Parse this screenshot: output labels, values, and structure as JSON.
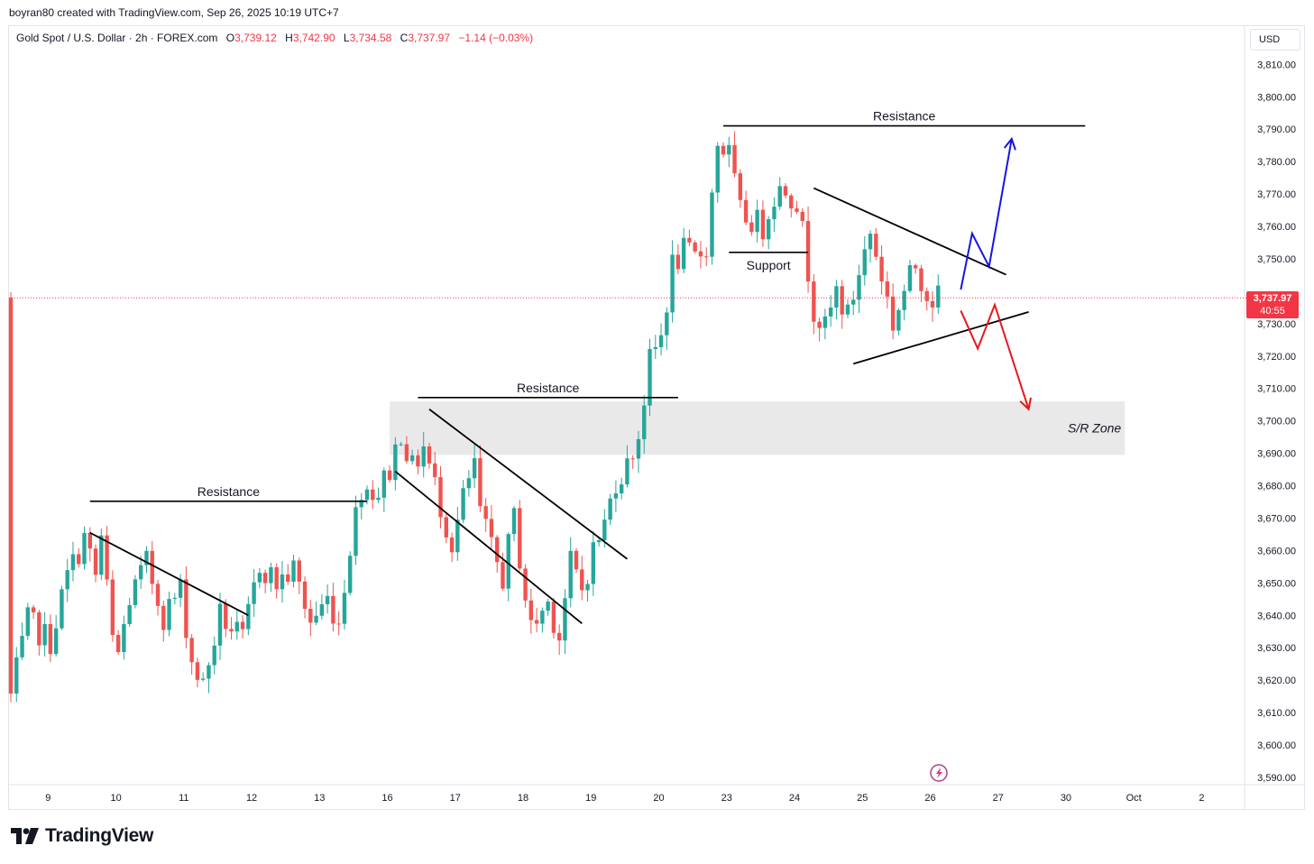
{
  "header": {
    "caption": "boyran80 created with TradingView.com, Sep 26, 2025 10:19 UTC+7"
  },
  "legend": {
    "symbol": "Gold Spot / U.S. Dollar · 2h · FOREX.com",
    "open_label": "O",
    "open": "3,739.12",
    "high_label": "H",
    "high": "3,742.90",
    "low_label": "L",
    "low": "3,734.58",
    "close_label": "C",
    "close": "3,737.97",
    "change": "−1.14 (−0.03%)"
  },
  "price_scale": {
    "currency": "USD",
    "last_price": "3,737.97",
    "countdown": "40:55"
  },
  "footer": {
    "brand": "TradingView"
  },
  "colors": {
    "up": "#26a69a",
    "down": "#ef5350",
    "zone": "#e9e9e9",
    "blue_path": "#1515e6",
    "red_path": "#e8171c",
    "last_price_line": "#f23645"
  },
  "chart_data": {
    "type": "candlestick",
    "title": "",
    "ylim": [
      3586,
      3816
    ],
    "y_ticks": [
      3590,
      3600,
      3610,
      3620,
      3630,
      3640,
      3650,
      3660,
      3670,
      3680,
      3690,
      3700,
      3710,
      3720,
      3730,
      3740,
      3750,
      3760,
      3770,
      3780,
      3790,
      3800,
      3810
    ],
    "y_tick_labels": [
      "3,590.00",
      "3,600.00",
      "3,610.00",
      "3,620.00",
      "3,630.00",
      "3,640.00",
      "3,650.00",
      "3,660.00",
      "3,670.00",
      "3,680.00",
      "3,690.00",
      "3,700.00",
      "3,710.00",
      "3,720.00",
      "3,730.00",
      "3,740.00",
      "3,750.00",
      "3,760.00",
      "3,770.00",
      "3,780.00",
      "3,790.00",
      "3,800.00",
      "3,810.00"
    ],
    "x_ticks": [
      {
        "label": "9",
        "t": 5
      },
      {
        "label": "10",
        "t": 17
      },
      {
        "label": "11",
        "t": 29
      },
      {
        "label": "12",
        "t": 41
      },
      {
        "label": "13",
        "t": 53
      },
      {
        "label": "16",
        "t": 65
      },
      {
        "label": "17",
        "t": 77
      },
      {
        "label": "18",
        "t": 89
      },
      {
        "label": "19",
        "t": 101
      },
      {
        "label": "20",
        "t": 113
      },
      {
        "label": "23",
        "t": 125
      },
      {
        "label": "24",
        "t": 137
      },
      {
        "label": "25",
        "t": 149
      },
      {
        "label": "26",
        "t": 161
      },
      {
        "label": "27",
        "t": 173
      },
      {
        "label": "30",
        "t": 185
      },
      {
        "label": "Oct",
        "t": 197
      },
      {
        "label": "2",
        "t": 209
      }
    ],
    "last_price": 3737.97,
    "anchors": [
      {
        "t": 1,
        "p": 3615
      },
      {
        "t": 4,
        "p": 3638
      },
      {
        "t": 8,
        "p": 3632
      },
      {
        "t": 11,
        "p": 3652
      },
      {
        "t": 14,
        "p": 3664
      },
      {
        "t": 16,
        "p": 3652
      },
      {
        "t": 17,
        "p": 3664
      },
      {
        "t": 19,
        "p": 3632
      },
      {
        "t": 20,
        "p": 3628
      },
      {
        "t": 22,
        "p": 3645
      },
      {
        "t": 25,
        "p": 3656
      },
      {
        "t": 28,
        "p": 3640
      },
      {
        "t": 31,
        "p": 3648
      },
      {
        "t": 33,
        "p": 3626
      },
      {
        "t": 35,
        "p": 3618
      },
      {
        "t": 38,
        "p": 3640
      },
      {
        "t": 42,
        "p": 3632
      },
      {
        "t": 45,
        "p": 3656
      },
      {
        "t": 48,
        "p": 3650
      },
      {
        "t": 51,
        "p": 3654
      },
      {
        "t": 54,
        "p": 3638
      },
      {
        "t": 57,
        "p": 3645
      },
      {
        "t": 59,
        "p": 3638
      },
      {
        "t": 61,
        "p": 3662
      },
      {
        "t": 63,
        "p": 3680
      },
      {
        "t": 66,
        "p": 3678
      },
      {
        "t": 68,
        "p": 3685
      },
      {
        "t": 70,
        "p": 3697
      },
      {
        "t": 72,
        "p": 3685
      },
      {
        "t": 74,
        "p": 3692
      },
      {
        "t": 76,
        "p": 3680
      },
      {
        "t": 79,
        "p": 3662
      },
      {
        "t": 81,
        "p": 3676
      },
      {
        "t": 83,
        "p": 3686
      },
      {
        "t": 84,
        "p": 3672
      },
      {
        "t": 86,
        "p": 3660
      },
      {
        "t": 88,
        "p": 3652
      },
      {
        "t": 90,
        "p": 3670
      },
      {
        "t": 92,
        "p": 3646
      },
      {
        "t": 93,
        "p": 3636
      },
      {
        "t": 96,
        "p": 3644
      },
      {
        "t": 98,
        "p": 3634
      },
      {
        "t": 100,
        "p": 3656
      },
      {
        "t": 102,
        "p": 3648
      },
      {
        "t": 104,
        "p": 3660
      },
      {
        "t": 106,
        "p": 3668
      },
      {
        "t": 108,
        "p": 3682
      },
      {
        "t": 110,
        "p": 3686
      },
      {
        "t": 112,
        "p": 3696
      },
      {
        "t": 114,
        "p": 3718
      },
      {
        "t": 116,
        "p": 3726
      },
      {
        "t": 118,
        "p": 3748
      },
      {
        "t": 120,
        "p": 3752
      },
      {
        "t": 122,
        "p": 3750
      },
      {
        "t": 124,
        "p": 3754
      },
      {
        "t": 126,
        "p": 3786
      },
      {
        "t": 128,
        "p": 3782
      },
      {
        "t": 130,
        "p": 3764
      },
      {
        "t": 132,
        "p": 3762
      },
      {
        "t": 134,
        "p": 3760
      },
      {
        "t": 136,
        "p": 3770
      },
      {
        "t": 138,
        "p": 3772
      },
      {
        "t": 140,
        "p": 3768
      },
      {
        "t": 141,
        "p": 3758
      },
      {
        "t": 143,
        "p": 3735
      },
      {
        "t": 145,
        "p": 3728
      },
      {
        "t": 147,
        "p": 3740
      },
      {
        "t": 149,
        "p": 3732
      },
      {
        "t": 151,
        "p": 3746
      },
      {
        "t": 153,
        "p": 3758
      },
      {
        "t": 155,
        "p": 3745
      },
      {
        "t": 157,
        "p": 3730
      },
      {
        "t": 159,
        "p": 3740
      },
      {
        "t": 161,
        "p": 3748
      },
      {
        "t": 163,
        "p": 3740
      },
      {
        "t": 164,
        "p": 3738
      }
    ],
    "candle_range": [
      0,
      164
    ],
    "drawings": {
      "resistance_lines": [
        {
          "label": "Resistance",
          "t1": 14,
          "t2": 63,
          "price": 3675.2
        },
        {
          "label": "Resistance",
          "t1": 72,
          "t2": 118,
          "price": 3707.2
        },
        {
          "label": "Resistance",
          "t1": 126,
          "t2": 190,
          "price": 3791.0
        }
      ],
      "support_line": {
        "label": "Support",
        "t1": 127,
        "t2": 141,
        "price": 3752.0
      },
      "sr_zone": {
        "label": "S/R Zone",
        "t1": 67,
        "t2": 197,
        "top": 3706.0,
        "bottom": 3689.5
      },
      "trendlines": [
        {
          "t1": 14,
          "p1": 3665.5,
          "t2": 42,
          "p2": 3640.0
        },
        {
          "t1": 74,
          "p1": 3703.6,
          "t2": 109,
          "p2": 3657.4
        },
        {
          "t1": 68,
          "p1": 3684.4,
          "t2": 101,
          "p2": 3637.5
        },
        {
          "t1": 142,
          "p1": 3771.8,
          "t2": 176,
          "p2": 3745.1
        },
        {
          "t1": 149,
          "p1": 3717.6,
          "t2": 180,
          "p2": 3733.6
        }
      ],
      "bullish_path": [
        {
          "t": 168,
          "p": 3740.5
        },
        {
          "t": 170,
          "p": 3757.8
        },
        {
          "t": 173,
          "p": 3747.6
        },
        {
          "t": 177,
          "p": 3787.0
        }
      ],
      "bearish_path": [
        {
          "t": 168,
          "p": 3734.0
        },
        {
          "t": 171,
          "p": 3722.3
        },
        {
          "t": 174,
          "p": 3735.8
        },
        {
          "t": 180,
          "p": 3703.6
        }
      ]
    }
  }
}
